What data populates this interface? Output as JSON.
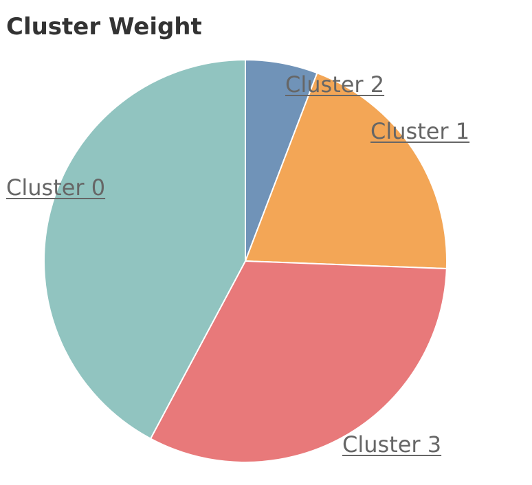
{
  "chart_data": {
    "type": "pie",
    "title": "Cluster Weight",
    "categories": [
      "Cluster 2",
      "Cluster 1",
      "Cluster 3",
      "Cluster 0"
    ],
    "values": [
      5.8,
      19.8,
      32.2,
      42.2
    ],
    "colors": [
      "#7093b8",
      "#f3a656",
      "#e8797a",
      "#91c4c0"
    ],
    "label_style": "underlined",
    "label_color": "#666666",
    "legend": "none"
  }
}
